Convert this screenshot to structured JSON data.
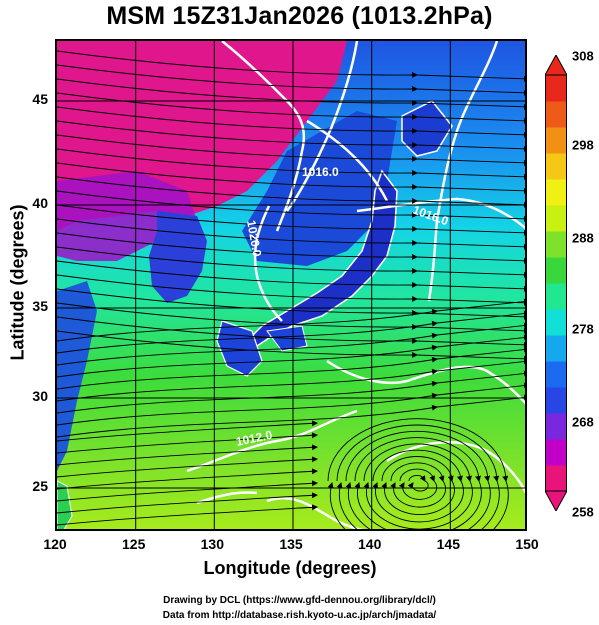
{
  "title": "MSM 15Z31Jan2026 (1013.2hPa)",
  "axes": {
    "xlabel": "Longitude (degrees)",
    "ylabel": "Latitude  (degrees)",
    "x_ticks": [
      "120",
      "125",
      "130",
      "135",
      "140",
      "145",
      "150"
    ],
    "y_ticks": [
      "25",
      "30",
      "35",
      "40",
      "45"
    ]
  },
  "colorbar": {
    "ticks": [
      "258",
      "268",
      "278",
      "288",
      "298",
      "308"
    ],
    "colors": [
      "#e8147a",
      "#c200c8",
      "#7a28e0",
      "#2846e6",
      "#1a6bef",
      "#14a8ee",
      "#12e0d8",
      "#20e890",
      "#38d83c",
      "#7ee22a",
      "#c8f012",
      "#f0f012",
      "#f4c814",
      "#f29016",
      "#ee5a18",
      "#e8281a"
    ]
  },
  "contour_labels": [
    "1016.0",
    "1016.0",
    "1020.0",
    "1012.0"
  ],
  "credits": {
    "line1": "Drawing by DCL (https://www.gfd-dennou.org/library/dcl/)",
    "line2": "Data from http://database.rish.kyoto-u.ac.jp/arch/jmadata/"
  },
  "chart_data": {
    "type": "heatmap",
    "field": "temperature (K) with wind streamlines at 1013.2hPa",
    "xlim": [
      120,
      150
    ],
    "ylim": [
      22.5,
      47.5
    ],
    "colorbar_range": [
      258,
      308
    ],
    "grid": true
  }
}
